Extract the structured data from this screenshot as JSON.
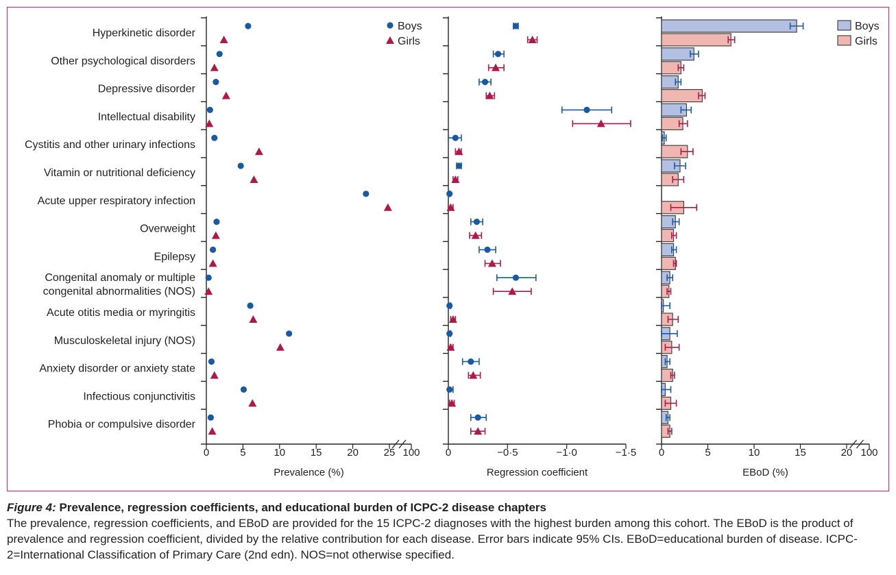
{
  "colors": {
    "boys": "#1a5aa0",
    "girls": "#b0184a",
    "boys_bar": "#b4c0e2",
    "girls_bar": "#efb6b2",
    "frame": "#c23a6e"
  },
  "caption": {
    "figure_label": "Figure 4:",
    "title": " Prevalence, regression coefficients, and educational burden of ICPC-2 disease chapters",
    "body": "The prevalence, regression coefficients, and EBoD are provided for the 15 ICPC-2 diagnoses with the highest burden among this cohort. The EBoD is the product of prevalence and regression coefficient, divided by the relative contribution for each disease. Error bars indicate 95% CIs. EBoD=educational burden of disease. ICPC-2=International Classification of Primary Care (2nd edn). NOS=not otherwise specified."
  },
  "chart_data": {
    "categories": [
      "Hyperkinetic disorder",
      "Other psychological disorders",
      "Depressive disorder",
      "Intellectual disability",
      "Cystitis and other urinary infections",
      "Vitamin or nutritional deficiency",
      "Acute upper respiratory infection",
      "Overweight",
      "Epilepsy",
      "Congenital anomaly or multiple|congenital abnormalities (NOS)",
      "Acute otitis media or myringitis",
      "Musculoskeletal injury (NOS)",
      "Anxiety disorder or anxiety state",
      "Infectious conjunctivitis",
      "Phobia or compulsive disorder"
    ],
    "panels": [
      {
        "type": "scatter",
        "xlabel": "Prevalence (%)",
        "xlim": [
          0,
          25
        ],
        "ticks": [
          {
            "v": 0,
            "l": "0"
          },
          {
            "v": 5,
            "l": "5"
          },
          {
            "v": 10,
            "l": "10"
          },
          {
            "v": 15,
            "l": "15"
          },
          {
            "v": 20,
            "l": "20"
          },
          {
            "v": 25,
            "l": "25"
          }
        ],
        "break_label": "100",
        "legend": {
          "placement": "top-right",
          "entries": [
            "Boys",
            "Girls"
          ]
        },
        "series": [
          {
            "name": "Boys",
            "marker": "circle",
            "values": [
              5.7,
              1.8,
              1.3,
              0.5,
              1.1,
              4.7,
              21.8,
              1.4,
              0.9,
              0.3,
              6.0,
              11.3,
              0.7,
              5.1,
              0.6
            ]
          },
          {
            "name": "Girls",
            "marker": "triangle",
            "values": [
              2.4,
              1.1,
              2.7,
              0.4,
              7.2,
              6.5,
              24.8,
              1.3,
              0.9,
              0.3,
              6.4,
              10.1,
              1.1,
              6.3,
              0.8
            ]
          }
        ]
      },
      {
        "type": "scatter",
        "xlabel": "Regression coefficient",
        "xlim": [
          0,
          -1.5
        ],
        "ticks": [
          {
            "v": 0,
            "l": "0"
          },
          {
            "v": -0.5,
            "l": "−0·5"
          },
          {
            "v": -1.0,
            "l": "−1·0"
          },
          {
            "v": -1.5,
            "l": "−1·5"
          }
        ],
        "series": [
          {
            "name": "Boys",
            "marker": "circle",
            "values": [
              -0.57,
              -0.42,
              -0.31,
              -1.17,
              -0.06,
              -0.09,
              -0.01,
              -0.24,
              -0.33,
              -0.57,
              -0.01,
              -0.01,
              -0.19,
              -0.01,
              -0.25
            ],
            "ci": [
              [
                -0.55,
                -0.59
              ],
              [
                -0.38,
                -0.47
              ],
              [
                -0.26,
                -0.36
              ],
              [
                -0.96,
                -1.38
              ],
              [
                0,
                -0.11
              ],
              [
                -0.07,
                -0.11
              ],
              [
                0,
                -0.01
              ],
              [
                -0.19,
                -0.29
              ],
              [
                -0.26,
                -0.4
              ],
              [
                -0.41,
                -0.74
              ],
              [
                0,
                -0.02
              ],
              [
                0,
                -0.02
              ],
              [
                -0.12,
                -0.26
              ],
              [
                0,
                -0.04
              ],
              [
                -0.19,
                -0.32
              ]
            ]
          },
          {
            "name": "Girls",
            "marker": "triangle",
            "values": [
              -0.71,
              -0.4,
              -0.35,
              -1.29,
              -0.09,
              -0.06,
              -0.02,
              -0.23,
              -0.37,
              -0.54,
              -0.04,
              -0.02,
              -0.21,
              -0.03,
              -0.25
            ],
            "ci": [
              [
                -0.67,
                -0.75
              ],
              [
                -0.34,
                -0.47
              ],
              [
                -0.32,
                -0.39
              ],
              [
                -1.05,
                -1.54
              ],
              [
                -0.06,
                -0.11
              ],
              [
                -0.04,
                -0.08
              ],
              [
                0,
                -0.04
              ],
              [
                -0.18,
                -0.28
              ],
              [
                -0.31,
                -0.44
              ],
              [
                -0.38,
                -0.7
              ],
              [
                -0.02,
                -0.06
              ],
              [
                0,
                -0.04
              ],
              [
                -0.17,
                -0.27
              ],
              [
                -0.01,
                -0.05
              ],
              [
                -0.19,
                -0.31
              ]
            ]
          }
        ]
      },
      {
        "type": "bar",
        "xlabel": "EBoD (%)",
        "xlim": [
          0,
          20
        ],
        "ticks": [
          {
            "v": 0,
            "l": "0"
          },
          {
            "v": 5,
            "l": "5"
          },
          {
            "v": 10,
            "l": "10"
          },
          {
            "v": 15,
            "l": "15"
          },
          {
            "v": 20,
            "l": "20"
          }
        ],
        "break_label": "100",
        "legend": {
          "placement": "top-right",
          "entries": [
            "Boys",
            "Girls"
          ]
        },
        "series": [
          {
            "name": "Boys",
            "values": [
              14.6,
              3.5,
              1.8,
              2.7,
              0.3,
              2.0,
              0,
              1.5,
              1.3,
              0.9,
              0.2,
              0.9,
              0.6,
              0.4,
              0.7
            ],
            "ci": [
              [
                13.9,
                15.3
              ],
              [
                3.1,
                4.0
              ],
              [
                1.5,
                2.1
              ],
              [
                2.1,
                3.2
              ],
              [
                0.1,
                0.5
              ],
              [
                1.4,
                2.6
              ],
              null,
              [
                1.2,
                1.9
              ],
              [
                1.1,
                1.6
              ],
              [
                0.6,
                1.2
              ],
              [
                0,
                0.9
              ],
              [
                0,
                1.7
              ],
              [
                0.4,
                0.9
              ],
              [
                0,
                1.0
              ],
              [
                0.5,
                0.9
              ]
            ]
          },
          {
            "name": "Girls",
            "values": [
              7.5,
              2.1,
              4.4,
              2.3,
              2.8,
              1.8,
              2.4,
              1.3,
              1.5,
              0.8,
              1.2,
              1.1,
              1.2,
              1.0,
              0.9
            ],
            "ci": [
              [
                7.2,
                7.9
              ],
              [
                1.8,
                2.4
              ],
              [
                4.0,
                4.7
              ],
              [
                1.9,
                2.8
              ],
              [
                2.1,
                3.4
              ],
              [
                1.2,
                2.4
              ],
              [
                1.0,
                3.8
              ],
              [
                1.1,
                1.6
              ],
              [
                1.3,
                1.6
              ],
              [
                0.6,
                1.0
              ],
              [
                0.7,
                1.8
              ],
              [
                0.4,
                1.9
              ],
              [
                1.0,
                1.4
              ],
              [
                0.4,
                1.6
              ],
              [
                0.7,
                1.1
              ]
            ]
          }
        ]
      }
    ]
  }
}
